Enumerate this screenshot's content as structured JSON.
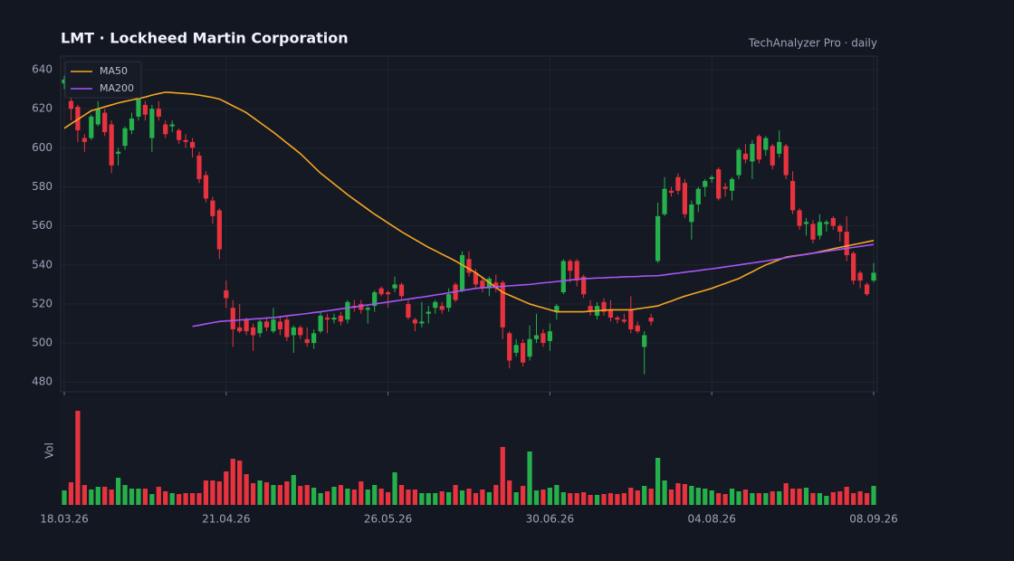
{
  "chart_data": {
    "type": "candlestick",
    "title": "LMT  ·  Lockheed Martin Corporation",
    "subtitle": "TechAnalyzer Pro · daily",
    "categories": [
      "18.03.26",
      null,
      null,
      null,
      null,
      null,
      null,
      null,
      null,
      null,
      null,
      null,
      null,
      null,
      null,
      null,
      null,
      null,
      null,
      null,
      null,
      null,
      null,
      null,
      "21.04.26",
      null,
      null,
      null,
      null,
      null,
      null,
      null,
      null,
      null,
      null,
      null,
      null,
      null,
      null,
      null,
      null,
      null,
      null,
      null,
      null,
      null,
      null,
      null,
      "26.05.26",
      null,
      null,
      null,
      null,
      null,
      null,
      null,
      null,
      null,
      null,
      null,
      null,
      null,
      null,
      null,
      null,
      null,
      null,
      null,
      null,
      null,
      null,
      null,
      "30.06.26",
      null,
      null,
      null,
      null,
      null,
      null,
      null,
      null,
      null,
      null,
      null,
      null,
      null,
      null,
      null,
      null,
      null,
      null,
      null,
      null,
      null,
      null,
      null,
      "04.08.26",
      null,
      null,
      null,
      null,
      null,
      null,
      null,
      null,
      null,
      null,
      null,
      null,
      null,
      null,
      null,
      null,
      null,
      null,
      null,
      null,
      null,
      null,
      null,
      "08.09.26"
    ],
    "open": [
      633,
      624,
      621,
      605,
      605,
      612,
      618,
      612,
      597,
      601,
      609,
      616,
      622,
      605,
      620,
      612,
      611,
      609,
      604,
      603,
      596,
      586,
      573,
      568,
      527,
      518,
      508,
      512,
      508,
      505,
      511,
      506,
      511,
      512,
      504,
      508,
      502,
      500,
      506,
      513,
      512,
      514,
      512,
      519,
      520,
      517,
      519,
      528,
      526,
      528,
      530,
      520,
      512,
      510,
      515,
      518,
      519,
      518,
      530,
      527,
      543,
      536,
      532,
      528,
      531,
      531,
      505,
      495,
      500,
      493,
      502,
      505,
      501,
      516,
      526,
      542,
      542,
      534,
      519,
      514,
      521,
      517,
      513,
      512,
      517,
      509,
      498,
      513,
      542,
      566,
      578,
      585,
      582,
      562,
      571,
      580,
      584,
      589,
      580,
      578,
      586,
      597,
      593,
      606,
      599,
      601,
      597,
      601,
      583,
      568,
      561,
      561,
      555,
      561,
      564,
      560,
      557,
      546,
      536,
      530,
      532
    ],
    "high": [
      637,
      626,
      622,
      607,
      617,
      624,
      620,
      614,
      600,
      611,
      618,
      630,
      624,
      622,
      624,
      614,
      614,
      610,
      607,
      605,
      598,
      588,
      575,
      569,
      532,
      522,
      520,
      513,
      510,
      512,
      513,
      518,
      514,
      514,
      509,
      509,
      508,
      507,
      516,
      515,
      515,
      516,
      522,
      522,
      522,
      519,
      527,
      529,
      527,
      534,
      531,
      522,
      513,
      521,
      519,
      522,
      521,
      528,
      531,
      547,
      547,
      538,
      534,
      534,
      535,
      532,
      506,
      502,
      502,
      509,
      515,
      507,
      510,
      520,
      543,
      543,
      543,
      535,
      522,
      521,
      523,
      522,
      514,
      515,
      524,
      511,
      506,
      515,
      572,
      585,
      580,
      587,
      584,
      573,
      580,
      584,
      586,
      590,
      582,
      585,
      600,
      602,
      604,
      607,
      606,
      602,
      609,
      602,
      588,
      569,
      564,
      563,
      566,
      563,
      565,
      561,
      565,
      547,
      537,
      531,
      541
    ],
    "low": [
      630,
      614,
      603,
      598,
      604,
      611,
      606,
      587,
      591,
      599,
      607,
      614,
      614,
      598,
      614,
      605,
      608,
      602,
      600,
      595,
      582,
      572,
      561,
      543,
      518,
      498,
      505,
      504,
      496,
      503,
      506,
      505,
      504,
      501,
      495,
      502,
      498,
      497,
      505,
      505,
      510,
      509,
      510,
      516,
      515,
      510,
      516,
      524,
      518,
      526,
      522,
      512,
      506,
      508,
      510,
      515,
      515,
      516,
      521,
      526,
      534,
      528,
      526,
      524,
      526,
      502,
      487,
      493,
      488,
      491,
      500,
      498,
      496,
      512,
      525,
      531,
      529,
      523,
      514,
      512,
      514,
      511,
      510,
      510,
      505,
      505,
      484,
      509,
      541,
      565,
      575,
      576,
      564,
      553,
      567,
      575,
      582,
      573,
      575,
      573,
      584,
      592,
      584,
      592,
      596,
      589,
      595,
      584,
      566,
      558,
      555,
      551,
      553,
      557,
      558,
      552,
      542,
      530,
      528,
      524,
      531
    ],
    "close": [
      635,
      620,
      609,
      603,
      616,
      620,
      608,
      591,
      598,
      610,
      615,
      629,
      617,
      620,
      616,
      607,
      612,
      604,
      603,
      600,
      584,
      574,
      565,
      548,
      523,
      507,
      506,
      506,
      504,
      511,
      508,
      512,
      507,
      503,
      508,
      504,
      500,
      505,
      514,
      512,
      513,
      511,
      521,
      518,
      517,
      518,
      526,
      525,
      525,
      530,
      524,
      513,
      510,
      511,
      516,
      521,
      517,
      525,
      522,
      545,
      536,
      530,
      528,
      533,
      528,
      508,
      491,
      499,
      490,
      502,
      504,
      500,
      506,
      519,
      542,
      537,
      532,
      525,
      516,
      519,
      516,
      513,
      512,
      511,
      507,
      506,
      504,
      511,
      565,
      579,
      577,
      578,
      566,
      571,
      579,
      583,
      585,
      574,
      579,
      584,
      599,
      594,
      602,
      594,
      605,
      591,
      603,
      586,
      568,
      560,
      562,
      553,
      562,
      562,
      560,
      557,
      545,
      532,
      532,
      525,
      536
    ],
    "up_color": "#26b04c",
    "down_color": "#e8333f",
    "series": [
      {
        "name": "MA50",
        "color": "#f5a623",
        "values": [
          610,
          612.3,
          614.5,
          616.8,
          619,
          620,
          621,
          622,
          623,
          623.8,
          624.5,
          625.3,
          626,
          627,
          627.8,
          628.5,
          628.3,
          628,
          627.8,
          627.5,
          627,
          626.4,
          625.8,
          625,
          623.3,
          621.5,
          619.8,
          618,
          615.5,
          613,
          610.5,
          608,
          605.3,
          602.5,
          599.8,
          597,
          593.7,
          590.3,
          587,
          584.3,
          581.5,
          578.8,
          576,
          573.5,
          571,
          568.5,
          566,
          563.8,
          561.5,
          559.3,
          557,
          555,
          553,
          551,
          549,
          547.3,
          545.5,
          543.8,
          542,
          540,
          538,
          536,
          533.5,
          531,
          528.5,
          526,
          524.5,
          523,
          521.5,
          520,
          519,
          518,
          517,
          516,
          516,
          516,
          516,
          516,
          516.3,
          516.5,
          516.8,
          517,
          517,
          517,
          517,
          517.5,
          518,
          518.5,
          519,
          520.3,
          521.5,
          522.8,
          524,
          525,
          526,
          527,
          528,
          529.3,
          530.5,
          531.8,
          533,
          534.8,
          536.5,
          538.3,
          540,
          541.3,
          542.7,
          544,
          544.5,
          545,
          545.5,
          546,
          546.8,
          547.5,
          548.3,
          549,
          549.7,
          550.4,
          551.1,
          551.8,
          552.5
        ]
      },
      {
        "name": "MA200",
        "color": "#a855f7",
        "values": [
          null,
          null,
          null,
          null,
          null,
          null,
          null,
          null,
          null,
          null,
          null,
          null,
          null,
          null,
          null,
          null,
          null,
          null,
          null,
          508.5,
          509.1,
          509.8,
          510.4,
          511,
          511.3,
          511.5,
          511.8,
          512,
          512.3,
          512.5,
          512.8,
          513,
          513.4,
          513.9,
          514.3,
          514.7,
          515.1,
          515.6,
          516,
          516.5,
          517,
          517.5,
          518,
          518.5,
          519,
          519.5,
          520,
          520.5,
          521,
          521.5,
          522,
          522.5,
          523,
          523.5,
          524,
          524.6,
          525.1,
          525.7,
          526.3,
          526.9,
          527.4,
          528,
          528.3,
          528.5,
          528.8,
          529,
          529.3,
          529.5,
          529.8,
          530,
          530.4,
          530.8,
          531.1,
          531.5,
          531.9,
          532.3,
          532.6,
          533,
          533.1,
          533.3,
          533.4,
          533.6,
          533.7,
          533.9,
          534,
          534.1,
          534.3,
          534.4,
          534.5,
          534.9,
          535.4,
          535.8,
          536.3,
          536.7,
          537.1,
          537.6,
          538,
          538.5,
          539,
          539.5,
          540,
          540.5,
          541,
          541.5,
          542,
          542.6,
          543.1,
          543.7,
          544.3,
          544.9,
          545.4,
          546,
          546.5,
          547,
          547.5,
          548,
          548.5,
          549,
          549.5,
          550,
          550.5
        ]
      }
    ],
    "ylim": [
      475,
      647
    ],
    "yticks": [
      480,
      500,
      520,
      540,
      560,
      580,
      600,
      620,
      640
    ],
    "grid": true,
    "legend": "upper left",
    "volume": {
      "label": "Vol",
      "ylim": [
        0,
        120
      ],
      "values": [
        16,
        25,
        104,
        22,
        17,
        20,
        20,
        17,
        30,
        22,
        18,
        18,
        18,
        12,
        20,
        15,
        13,
        12,
        13,
        13,
        13,
        27,
        27,
        26,
        37,
        51,
        49,
        34,
        24,
        27,
        25,
        22,
        22,
        26,
        33,
        21,
        22,
        19,
        13,
        15,
        20,
        22,
        18,
        17,
        26,
        17,
        22,
        18,
        14,
        36,
        22,
        17,
        17,
        13,
        13,
        13,
        15,
        14,
        22,
        16,
        18,
        13,
        17,
        14,
        22,
        64,
        27,
        14,
        21,
        59,
        16,
        17,
        19,
        22,
        14,
        13,
        13,
        14,
        11,
        11,
        12,
        13,
        12,
        13,
        19,
        16,
        21,
        18,
        52,
        27,
        17,
        24,
        23,
        21,
        19,
        18,
        16,
        13,
        12,
        18,
        15,
        17,
        13,
        13,
        13,
        15,
        15,
        24,
        18,
        18,
        19,
        13,
        13,
        10,
        14,
        15,
        20,
        13,
        15,
        13,
        21
      ]
    }
  }
}
